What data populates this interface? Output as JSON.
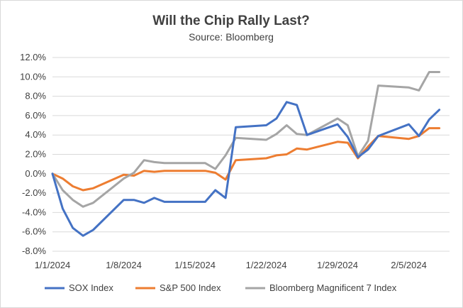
{
  "chart_data": {
    "type": "line",
    "title": "Will the Chip Rally Last?",
    "subtitle": "Source: Bloomberg",
    "xlabel": "",
    "ylabel": "",
    "ylim": [
      -8,
      12
    ],
    "xlim": [
      "2024-01-01",
      "2024-02-09"
    ],
    "y_ticks": [
      {
        "value": 12,
        "label": "12.0%"
      },
      {
        "value": 10,
        "label": "10.0%"
      },
      {
        "value": 8,
        "label": "8.0%"
      },
      {
        "value": 6,
        "label": "6.0%"
      },
      {
        "value": 4,
        "label": "4.0%"
      },
      {
        "value": 2,
        "label": "2.0%"
      },
      {
        "value": 0,
        "label": "0.0%"
      },
      {
        "value": -2,
        "label": "-2.0%"
      },
      {
        "value": -4,
        "label": "-4.0%"
      },
      {
        "value": -6,
        "label": "-6.0%"
      },
      {
        "value": -8,
        "label": "-8.0%"
      }
    ],
    "x_ticks": [
      {
        "date": "2024-01-01",
        "label": "1/1/2024"
      },
      {
        "date": "2024-01-08",
        "label": "1/8/2024"
      },
      {
        "date": "2024-01-15",
        "label": "1/15/2024"
      },
      {
        "date": "2024-01-22",
        "label": "1/22/2024"
      },
      {
        "date": "2024-01-29",
        "label": "1/29/2024"
      },
      {
        "date": "2024-02-05",
        "label": "2/5/2024"
      }
    ],
    "grid": "horizontal",
    "legend_position": "bottom",
    "series": [
      {
        "name": "SOX Index",
        "color": "#4472c4",
        "points": [
          [
            "2024-01-01",
            0.0
          ],
          [
            "2024-01-02",
            -3.6
          ],
          [
            "2024-01-03",
            -5.6
          ],
          [
            "2024-01-04",
            -6.4
          ],
          [
            "2024-01-05",
            -5.8
          ],
          [
            "2024-01-08",
            -2.7
          ],
          [
            "2024-01-09",
            -2.7
          ],
          [
            "2024-01-10",
            -3.0
          ],
          [
            "2024-01-11",
            -2.5
          ],
          [
            "2024-01-12",
            -2.9
          ],
          [
            "2024-01-16",
            -2.9
          ],
          [
            "2024-01-17",
            -1.7
          ],
          [
            "2024-01-18",
            -2.5
          ],
          [
            "2024-01-19",
            4.8
          ],
          [
            "2024-01-22",
            5.0
          ],
          [
            "2024-01-23",
            5.7
          ],
          [
            "2024-01-24",
            7.4
          ],
          [
            "2024-01-25",
            7.1
          ],
          [
            "2024-01-26",
            4.0
          ],
          [
            "2024-01-29",
            5.1
          ],
          [
            "2024-01-30",
            3.8
          ],
          [
            "2024-01-31",
            1.7
          ],
          [
            "2024-02-01",
            2.5
          ],
          [
            "2024-02-02",
            3.9
          ],
          [
            "2024-02-05",
            5.1
          ],
          [
            "2024-02-06",
            3.9
          ],
          [
            "2024-02-07",
            5.6
          ],
          [
            "2024-02-08",
            6.6
          ]
        ]
      },
      {
        "name": "S&P 500 Index",
        "color": "#ed7d31",
        "points": [
          [
            "2024-01-01",
            0.0
          ],
          [
            "2024-01-02",
            -0.5
          ],
          [
            "2024-01-03",
            -1.3
          ],
          [
            "2024-01-04",
            -1.7
          ],
          [
            "2024-01-05",
            -1.5
          ],
          [
            "2024-01-08",
            -0.1
          ],
          [
            "2024-01-09",
            -0.2
          ],
          [
            "2024-01-10",
            0.3
          ],
          [
            "2024-01-11",
            0.2
          ],
          [
            "2024-01-12",
            0.3
          ],
          [
            "2024-01-16",
            0.3
          ],
          [
            "2024-01-17",
            0.1
          ],
          [
            "2024-01-18",
            -0.6
          ],
          [
            "2024-01-19",
            1.4
          ],
          [
            "2024-01-22",
            1.6
          ],
          [
            "2024-01-23",
            1.9
          ],
          [
            "2024-01-24",
            2.0
          ],
          [
            "2024-01-25",
            2.6
          ],
          [
            "2024-01-26",
            2.5
          ],
          [
            "2024-01-29",
            3.3
          ],
          [
            "2024-01-30",
            3.2
          ],
          [
            "2024-01-31",
            1.6
          ],
          [
            "2024-02-01",
            2.8
          ],
          [
            "2024-02-02",
            3.9
          ],
          [
            "2024-02-05",
            3.6
          ],
          [
            "2024-02-06",
            3.9
          ],
          [
            "2024-02-07",
            4.7
          ],
          [
            "2024-02-08",
            4.7
          ]
        ]
      },
      {
        "name": "Bloomberg Magnificent 7 Index",
        "color": "#a5a5a5",
        "points": [
          [
            "2024-01-01",
            0.0
          ],
          [
            "2024-01-02",
            -1.7
          ],
          [
            "2024-01-03",
            -2.7
          ],
          [
            "2024-01-04",
            -3.4
          ],
          [
            "2024-01-05",
            -3.0
          ],
          [
            "2024-01-08",
            -0.5
          ],
          [
            "2024-01-09",
            0.1
          ],
          [
            "2024-01-10",
            1.4
          ],
          [
            "2024-01-11",
            1.2
          ],
          [
            "2024-01-12",
            1.1
          ],
          [
            "2024-01-16",
            1.1
          ],
          [
            "2024-01-17",
            0.5
          ],
          [
            "2024-01-18",
            1.9
          ],
          [
            "2024-01-19",
            3.7
          ],
          [
            "2024-01-22",
            3.5
          ],
          [
            "2024-01-23",
            4.1
          ],
          [
            "2024-01-24",
            5.0
          ],
          [
            "2024-01-25",
            4.1
          ],
          [
            "2024-01-26",
            4.0
          ],
          [
            "2024-01-29",
            5.7
          ],
          [
            "2024-01-30",
            5.0
          ],
          [
            "2024-01-31",
            1.8
          ],
          [
            "2024-02-01",
            3.4
          ],
          [
            "2024-02-02",
            9.1
          ],
          [
            "2024-02-05",
            8.9
          ],
          [
            "2024-02-06",
            8.6
          ],
          [
            "2024-02-07",
            10.5
          ],
          [
            "2024-02-08",
            10.5
          ]
        ]
      }
    ]
  }
}
